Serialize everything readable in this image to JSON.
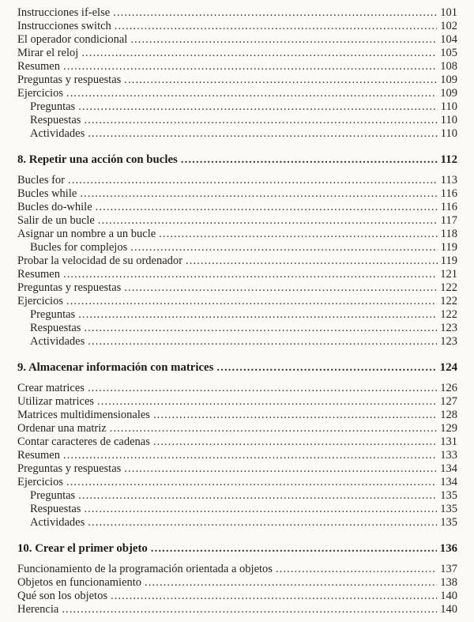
{
  "colors": {
    "page_background": "#fbfaf7",
    "text": "#242424",
    "heading_text": "#1c1c1c",
    "leader_dots": "#3a3a3a"
  },
  "toc": {
    "sections": [
      {
        "entries": [
          {
            "title": "Instrucciones if-else",
            "page": "101",
            "indent": 0
          },
          {
            "title": "Instrucciones switch",
            "page": "102",
            "indent": 0
          },
          {
            "title": "El operador condicional",
            "page": "104",
            "indent": 0
          },
          {
            "title": "Mirar el reloj",
            "page": "105",
            "indent": 0
          },
          {
            "title": "Resumen",
            "page": "108",
            "indent": 0
          },
          {
            "title": "Preguntas y respuestas",
            "page": "109",
            "indent": 0
          },
          {
            "title": "Ejercicios",
            "page": "109",
            "indent": 0
          },
          {
            "title": "Preguntas",
            "page": "110",
            "indent": 1
          },
          {
            "title": "Respuestas",
            "page": "110",
            "indent": 1
          },
          {
            "title": "Actividades",
            "page": "110",
            "indent": 1
          }
        ]
      },
      {
        "heading": {
          "title": "8. Repetir una acción con bucles",
          "page": "112"
        },
        "entries": [
          {
            "title": "Bucles for",
            "page": "113",
            "indent": 0
          },
          {
            "title": "Bucles while",
            "page": "116",
            "indent": 0
          },
          {
            "title": "Bucles do-while",
            "page": "116",
            "indent": 0
          },
          {
            "title": "Salir de un bucle",
            "page": "117",
            "indent": 0
          },
          {
            "title": "Asignar un nombre a un bucle",
            "page": "118",
            "indent": 0
          },
          {
            "title": "Bucles for complejos",
            "page": "119",
            "indent": 1
          },
          {
            "title": "Probar la velocidad de su ordenador",
            "page": "119",
            "indent": 0
          },
          {
            "title": "Resumen",
            "page": "121",
            "indent": 0
          },
          {
            "title": "Preguntas y respuestas",
            "page": "122",
            "indent": 0
          },
          {
            "title": "Ejercicios",
            "page": "122",
            "indent": 0
          },
          {
            "title": "Preguntas",
            "page": "122",
            "indent": 1
          },
          {
            "title": "Respuestas",
            "page": "123",
            "indent": 1
          },
          {
            "title": "Actividades",
            "page": "123",
            "indent": 1
          }
        ]
      },
      {
        "heading": {
          "title": "9. Almacenar información con matrices",
          "page": "124"
        },
        "entries": [
          {
            "title": "Crear matrices",
            "page": "126",
            "indent": 0
          },
          {
            "title": "Utilizar matrices",
            "page": "127",
            "indent": 0
          },
          {
            "title": "Matrices multidimensionales",
            "page": "128",
            "indent": 0
          },
          {
            "title": "Ordenar una matriz",
            "page": "129",
            "indent": 0
          },
          {
            "title": "Contar caracteres de cadenas",
            "page": "131",
            "indent": 0
          },
          {
            "title": "Resumen",
            "page": "133",
            "indent": 0
          },
          {
            "title": "Preguntas y respuestas",
            "page": "134",
            "indent": 0
          },
          {
            "title": "Ejercicios",
            "page": "134",
            "indent": 0
          },
          {
            "title": "Preguntas",
            "page": "135",
            "indent": 1
          },
          {
            "title": "Respuestas",
            "page": "135",
            "indent": 1
          },
          {
            "title": "Actividades",
            "page": "135",
            "indent": 1
          }
        ]
      },
      {
        "heading": {
          "title": "10. Crear el primer objeto",
          "page": "136"
        },
        "entries": [
          {
            "title": "Funcionamiento de la programación orientada a objetos",
            "page": "137",
            "indent": 0
          },
          {
            "title": "Objetos en funcionamiento",
            "page": "138",
            "indent": 0
          },
          {
            "title": "Qué son los objetos",
            "page": "140",
            "indent": 0
          },
          {
            "title": "Herencia",
            "page": "140",
            "indent": 0
          }
        ]
      }
    ]
  }
}
